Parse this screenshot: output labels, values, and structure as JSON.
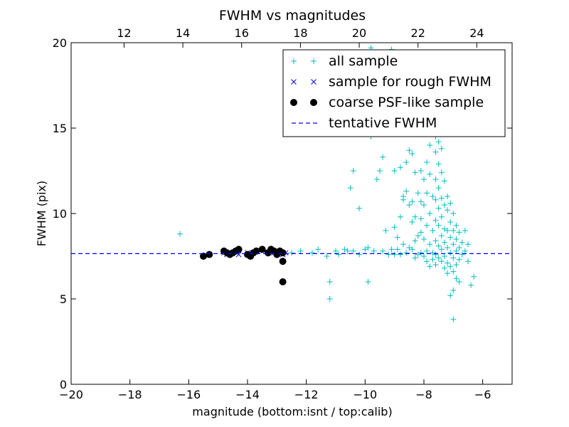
{
  "chart_data": {
    "type": "scatter",
    "title": "FWHM vs magnitudes",
    "xlabel": "magnitude (bottom:isnt / top:calib)",
    "ylabel": "FWHM (pix)",
    "xlim": [
      -20,
      -5
    ],
    "ylim": [
      0,
      20
    ],
    "x_ticks": [
      -20,
      -18,
      -16,
      -14,
      -12,
      -10,
      -8,
      -6
    ],
    "x_tick_labels": [
      "−20",
      "−18",
      "−16",
      "−14",
      "−12",
      "−10",
      "−8",
      "−6"
    ],
    "y_ticks": [
      0,
      5,
      10,
      15,
      20
    ],
    "y_tick_labels": [
      "0",
      "5",
      "10",
      "15",
      "20"
    ],
    "top_axis": {
      "offset": 30.2,
      "ticks": [
        12,
        14,
        16,
        18,
        20,
        22,
        24
      ],
      "tick_labels": [
        "12",
        "14",
        "16",
        "18",
        "20",
        "22",
        "24"
      ]
    },
    "legend_position": "top-right",
    "grid": false,
    "series": [
      {
        "name": "all sample",
        "marker": "+",
        "color": "#00bfbf",
        "points": [
          [
            -16.3,
            8.8
          ],
          [
            -12.5,
            7.7
          ],
          [
            -12.2,
            7.8
          ],
          [
            -11.8,
            7.7
          ],
          [
            -11.6,
            7.9
          ],
          [
            -11.3,
            7.5
          ],
          [
            -11.2,
            6.0
          ],
          [
            -11.2,
            5.0
          ],
          [
            -11.0,
            7.8
          ],
          [
            -10.9,
            7.6
          ],
          [
            -10.7,
            7.9
          ],
          [
            -10.6,
            7.8
          ],
          [
            -10.5,
            11.5
          ],
          [
            -10.4,
            12.5
          ],
          [
            -10.4,
            7.8
          ],
          [
            -10.2,
            10.3
          ],
          [
            -10.2,
            7.6
          ],
          [
            -10.0,
            7.9
          ],
          [
            -9.9,
            8.0
          ],
          [
            -9.9,
            6.0
          ],
          [
            -9.8,
            19.7
          ],
          [
            -9.8,
            14.5
          ],
          [
            -9.7,
            7.8
          ],
          [
            -9.6,
            12.0
          ],
          [
            -9.5,
            12.5
          ],
          [
            -9.4,
            13.3
          ],
          [
            -9.4,
            7.8
          ],
          [
            -9.3,
            9.0
          ],
          [
            -9.2,
            7.6
          ],
          [
            -9.1,
            19.6
          ],
          [
            -9.1,
            7.9
          ],
          [
            -9.0,
            15.5
          ],
          [
            -9.0,
            12.5
          ],
          [
            -9.0,
            9.2
          ],
          [
            -9.0,
            7.6
          ],
          [
            -8.9,
            7.9
          ],
          [
            -8.9,
            8.6
          ],
          [
            -8.8,
            12.7
          ],
          [
            -8.8,
            9.8
          ],
          [
            -8.8,
            7.6
          ],
          [
            -8.7,
            11.0
          ],
          [
            -8.7,
            10.8
          ],
          [
            -8.7,
            8.2
          ],
          [
            -8.6,
            13.0
          ],
          [
            -8.6,
            11.3
          ],
          [
            -8.6,
            7.7
          ],
          [
            -8.5,
            15.2
          ],
          [
            -8.5,
            13.7
          ],
          [
            -8.5,
            10.5
          ],
          [
            -8.5,
            8.0
          ],
          [
            -8.4,
            13.5
          ],
          [
            -8.4,
            10.7
          ],
          [
            -8.4,
            9.5
          ],
          [
            -8.4,
            7.9
          ],
          [
            -8.3,
            12.4
          ],
          [
            -8.3,
            9.8
          ],
          [
            -8.3,
            8.4
          ],
          [
            -8.3,
            7.4
          ],
          [
            -8.2,
            11.2
          ],
          [
            -8.2,
            8.7
          ],
          [
            -8.2,
            7.6
          ],
          [
            -8.1,
            12.5
          ],
          [
            -8.1,
            10.7
          ],
          [
            -8.1,
            9.7
          ],
          [
            -8.1,
            8.9
          ],
          [
            -8.1,
            7.7
          ],
          [
            -8.0,
            12.0
          ],
          [
            -8.0,
            10.5
          ],
          [
            -8.0,
            8.5
          ],
          [
            -8.0,
            7.5
          ],
          [
            -7.9,
            13.0
          ],
          [
            -7.9,
            11.2
          ],
          [
            -7.9,
            9.3
          ],
          [
            -7.9,
            7.8
          ],
          [
            -7.9,
            7.2
          ],
          [
            -7.8,
            14.0
          ],
          [
            -7.8,
            12.3
          ],
          [
            -7.8,
            10.0
          ],
          [
            -7.8,
            8.2
          ],
          [
            -7.8,
            6.9
          ],
          [
            -7.7,
            15.0
          ],
          [
            -7.7,
            11.0
          ],
          [
            -7.7,
            9.0
          ],
          [
            -7.7,
            7.7
          ],
          [
            -7.7,
            7.3
          ],
          [
            -7.6,
            14.5
          ],
          [
            -7.6,
            13.6
          ],
          [
            -7.6,
            12.0
          ],
          [
            -7.6,
            10.8
          ],
          [
            -7.6,
            9.6
          ],
          [
            -7.6,
            8.4
          ],
          [
            -7.6,
            7.6
          ],
          [
            -7.6,
            7.0
          ],
          [
            -7.5,
            14.2
          ],
          [
            -7.5,
            12.9
          ],
          [
            -7.5,
            11.5
          ],
          [
            -7.5,
            10.3
          ],
          [
            -7.5,
            9.3
          ],
          [
            -7.5,
            8.1
          ],
          [
            -7.5,
            7.4
          ],
          [
            -7.4,
            13.8
          ],
          [
            -7.4,
            12.4
          ],
          [
            -7.4,
            10.9
          ],
          [
            -7.4,
            9.8
          ],
          [
            -7.4,
            8.7
          ],
          [
            -7.4,
            7.9
          ],
          [
            -7.4,
            7.2
          ],
          [
            -7.3,
            11.9
          ],
          [
            -7.3,
            10.5
          ],
          [
            -7.3,
            9.1
          ],
          [
            -7.3,
            8.3
          ],
          [
            -7.3,
            7.5
          ],
          [
            -7.3,
            6.8
          ],
          [
            -7.2,
            11.0
          ],
          [
            -7.2,
            10.2
          ],
          [
            -7.2,
            9.0
          ],
          [
            -7.2,
            8.0
          ],
          [
            -7.2,
            7.1
          ],
          [
            -7.2,
            6.5
          ],
          [
            -7.1,
            10.6
          ],
          [
            -7.1,
            9.5
          ],
          [
            -7.1,
            8.6
          ],
          [
            -7.1,
            7.7
          ],
          [
            -7.1,
            6.9
          ],
          [
            -7.1,
            5.2
          ],
          [
            -7.0,
            10.0
          ],
          [
            -7.0,
            9.0
          ],
          [
            -7.0,
            8.2
          ],
          [
            -7.0,
            7.4
          ],
          [
            -7.0,
            6.6
          ],
          [
            -7.0,
            5.5
          ],
          [
            -7.0,
            3.8
          ],
          [
            -6.9,
            9.3
          ],
          [
            -6.9,
            8.5
          ],
          [
            -6.9,
            7.8
          ],
          [
            -6.9,
            7.0
          ],
          [
            -6.9,
            6.2
          ],
          [
            -6.8,
            8.9
          ],
          [
            -6.8,
            8.0
          ],
          [
            -6.8,
            7.3
          ],
          [
            -6.8,
            6.0
          ],
          [
            -6.7,
            8.3
          ],
          [
            -6.7,
            7.6
          ],
          [
            -6.6,
            9.0
          ],
          [
            -6.6,
            7.8
          ],
          [
            -6.5,
            8.2
          ],
          [
            -6.5,
            7.2
          ],
          [
            -6.4,
            5.8
          ],
          [
            -6.3,
            6.3
          ]
        ]
      },
      {
        "name": "sample for rough FWHM",
        "marker": "x",
        "color": "#0000ff",
        "points": [
          [
            -15.5,
            7.5
          ],
          [
            -15.3,
            7.6
          ],
          [
            -14.8,
            7.7
          ],
          [
            -14.7,
            7.6
          ],
          [
            -14.6,
            7.7
          ],
          [
            -14.4,
            7.8
          ],
          [
            -14.3,
            7.6
          ],
          [
            -14.0,
            7.7
          ],
          [
            -13.9,
            7.5
          ],
          [
            -13.8,
            7.7
          ],
          [
            -13.7,
            7.8
          ],
          [
            -13.5,
            7.9
          ],
          [
            -13.3,
            7.7
          ],
          [
            -13.2,
            7.8
          ],
          [
            -13.1,
            7.7
          ],
          [
            -13.0,
            7.6
          ],
          [
            -12.9,
            7.7
          ],
          [
            -12.8,
            7.6
          ],
          [
            -12.7,
            7.7
          ]
        ]
      },
      {
        "name": "coarse PSF-like sample",
        "marker": "o",
        "color": "#000000",
        "points": [
          [
            -15.5,
            7.5
          ],
          [
            -15.3,
            7.6
          ],
          [
            -14.8,
            7.8
          ],
          [
            -14.7,
            7.7
          ],
          [
            -14.6,
            7.6
          ],
          [
            -14.5,
            7.7
          ],
          [
            -14.4,
            7.8
          ],
          [
            -14.3,
            7.9
          ],
          [
            -14.0,
            7.6
          ],
          [
            -13.9,
            7.5
          ],
          [
            -13.8,
            7.7
          ],
          [
            -13.7,
            7.8
          ],
          [
            -13.5,
            7.9
          ],
          [
            -13.3,
            7.7
          ],
          [
            -13.2,
            7.9
          ],
          [
            -13.1,
            7.8
          ],
          [
            -13.0,
            7.6
          ],
          [
            -12.9,
            7.8
          ],
          [
            -12.8,
            7.7
          ],
          [
            -12.8,
            7.2
          ],
          [
            -12.8,
            6.0
          ]
        ]
      },
      {
        "name": "tentative FWHM",
        "marker": "dashed-line",
        "color": "#0000ff",
        "y": 7.65
      }
    ]
  }
}
